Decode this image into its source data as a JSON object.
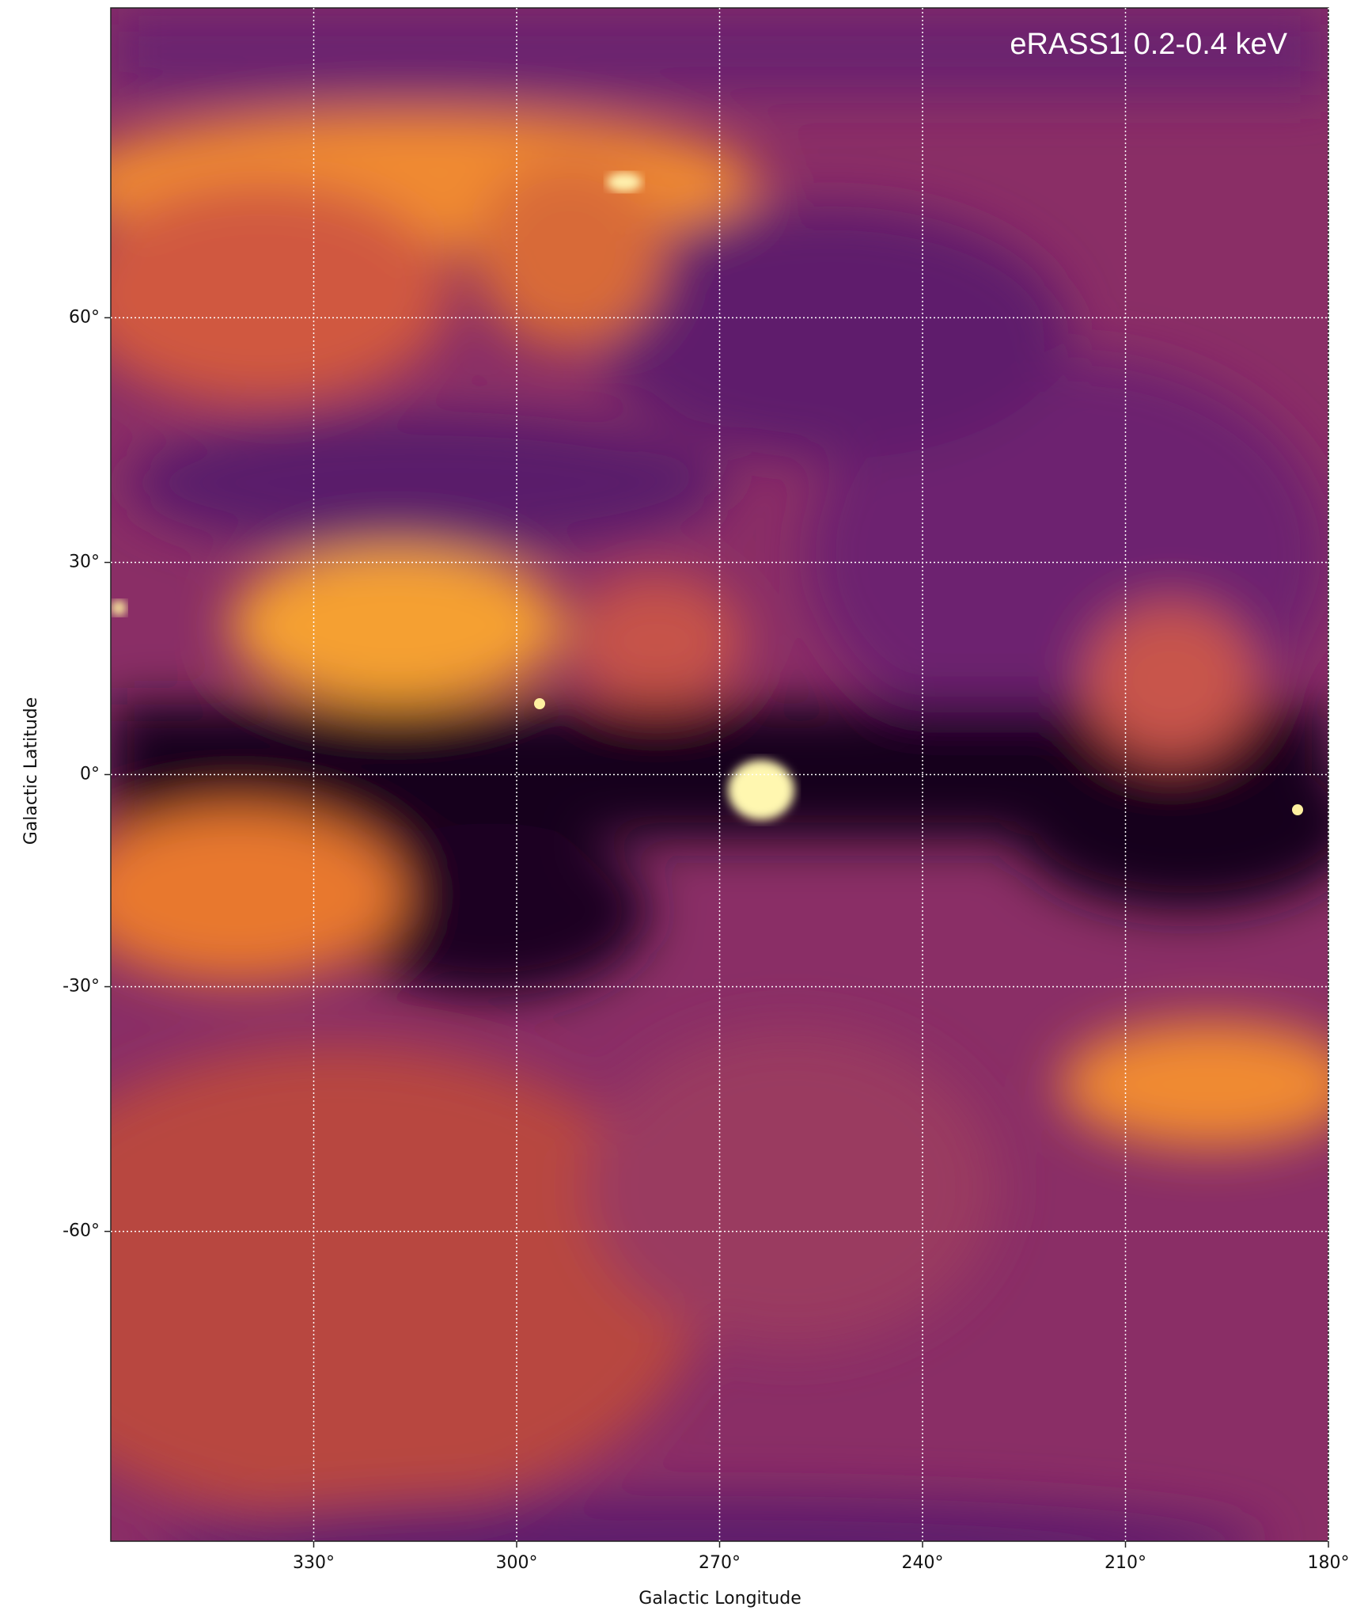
{
  "chart_data": {
    "type": "image",
    "title": "eRASS1 0.2-0.4 keV",
    "xlabel": "Galactic Longitude",
    "ylabel": "Galactic Latitude",
    "xlim": [
      360,
      180
    ],
    "ylim": [
      -90,
      90
    ],
    "xticks": [
      {
        "value": 330,
        "label": "330°"
      },
      {
        "value": 300,
        "label": "300°"
      },
      {
        "value": 270,
        "label": "270°"
      },
      {
        "value": 240,
        "label": "240°"
      },
      {
        "value": 210,
        "label": "210°"
      },
      {
        "value": 180,
        "label": "180°"
      }
    ],
    "yticks": [
      {
        "value": 60,
        "label": "60°"
      },
      {
        "value": 30,
        "label": "30°"
      },
      {
        "value": 0,
        "label": "0°"
      },
      {
        "value": -30,
        "label": "-30°"
      },
      {
        "value": -60,
        "label": "-60°"
      }
    ],
    "grid": true
  }
}
